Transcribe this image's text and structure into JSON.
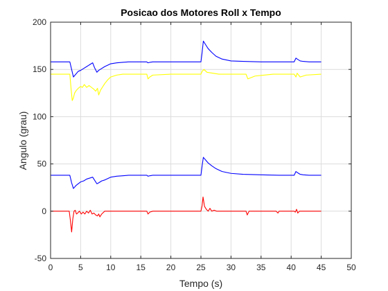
{
  "chart_data": {
    "type": "line",
    "title": "Posicao dos Motores Roll x Tempo",
    "xlabel": "Tempo (s)",
    "ylabel": "Angulo (grau)",
    "xlim": [
      0,
      50
    ],
    "ylim": [
      -50,
      200
    ],
    "xticks": [
      0,
      5,
      10,
      15,
      20,
      25,
      30,
      35,
      40,
      45,
      50
    ],
    "yticks": [
      -50,
      0,
      50,
      100,
      150,
      200
    ],
    "grid": true,
    "legend": "none",
    "colors": {
      "blue": "#0000ff",
      "yellow": "#ffff00",
      "red": "#ff0000",
      "grid": "#dcdcdc",
      "axis": "#262626"
    },
    "series": [
      {
        "color": "#0000ff",
        "x": [
          0,
          3.2,
          3.5,
          3.8,
          4.2,
          4.6,
          5.0,
          5.5,
          6.0,
          6.5,
          7.0,
          7.3,
          7.7,
          8.0,
          8.5,
          9.0,
          10.0,
          11.0,
          12.0,
          13.0,
          15.0,
          16.0,
          16.2,
          16.5,
          17.0,
          20.0,
          24.0,
          25.0,
          25.2,
          25.4,
          25.8,
          26.2,
          26.8,
          27.5,
          28.5,
          30.0,
          32.0,
          35.0,
          38.0,
          40.5,
          40.8,
          41.0,
          41.5,
          42.0,
          43.0,
          45.0
        ],
        "y": [
          158,
          158,
          150,
          142,
          145,
          148,
          149,
          151,
          153,
          155,
          157,
          152,
          147,
          149,
          151,
          153,
          156,
          157,
          157.5,
          158,
          158,
          158,
          157,
          157.5,
          158,
          158,
          158,
          158,
          168,
          180,
          176,
          172,
          168,
          164,
          161,
          159,
          158.5,
          158,
          158,
          158,
          162,
          161,
          159,
          158.5,
          158,
          158
        ]
      },
      {
        "color": "#ffff00",
        "x": [
          0,
          3.2,
          3.4,
          3.6,
          3.8,
          4.0,
          4.3,
          4.6,
          5.0,
          5.3,
          5.6,
          6.0,
          6.4,
          6.8,
          7.2,
          7.5,
          7.8,
          8.0,
          8.3,
          8.6,
          9.0,
          9.5,
          10.0,
          10.5,
          11.0,
          12.0,
          13.0,
          15.0,
          16.0,
          16.2,
          16.5,
          17.0,
          20.0,
          25.0,
          25.2,
          25.5,
          26.0,
          27.0,
          28.0,
          30.0,
          32.5,
          32.8,
          33.2,
          34.0,
          37.0,
          38.0,
          40.5,
          40.8,
          41.0,
          41.5,
          42.5,
          45.0
        ],
        "y": [
          145,
          145,
          130,
          117,
          120,
          125,
          128,
          130,
          132,
          131,
          134,
          131,
          133,
          131,
          129,
          127,
          130,
          123,
          128,
          131,
          135,
          139,
          142,
          143,
          144,
          145,
          145,
          145,
          145,
          140,
          142,
          144,
          145,
          145,
          148,
          150,
          147,
          146,
          145,
          145,
          145,
          140,
          141,
          143,
          145,
          145,
          145,
          142,
          146,
          142,
          144,
          145
        ]
      },
      {
        "color": "#0000ff",
        "x": [
          0,
          3.2,
          3.5,
          3.8,
          4.2,
          4.6,
          5.0,
          5.5,
          6.0,
          6.5,
          7.0,
          7.3,
          7.7,
          8.0,
          8.5,
          9.0,
          10.0,
          11.0,
          12.0,
          13.0,
          15.0,
          16.0,
          16.2,
          16.5,
          17.0,
          20.0,
          24.0,
          25.0,
          25.2,
          25.4,
          25.8,
          26.2,
          26.8,
          27.5,
          28.5,
          30.0,
          32.0,
          35.0,
          38.0,
          40.5,
          40.8,
          41.0,
          41.5,
          42.0,
          43.0,
          45.0
        ],
        "y": [
          38,
          38,
          30,
          24,
          27,
          29,
          31,
          32,
          34,
          35,
          36,
          33,
          29,
          30,
          32,
          33,
          36,
          37,
          37.5,
          38,
          38,
          38,
          37,
          37.5,
          38,
          38,
          38,
          38,
          48,
          57,
          54,
          51,
          48,
          45,
          42,
          40,
          39,
          38.5,
          38,
          38,
          42,
          41,
          39,
          38.5,
          38,
          38
        ]
      },
      {
        "color": "#ff0000",
        "x": [
          0,
          3.1,
          3.3,
          3.5,
          3.7,
          3.9,
          4.1,
          4.3,
          4.5,
          4.8,
          5.1,
          5.4,
          5.7,
          6.0,
          6.3,
          6.6,
          6.9,
          7.2,
          7.5,
          7.8,
          8.0,
          8.2,
          8.5,
          9.0,
          10.0,
          15.0,
          16.0,
          16.2,
          16.5,
          17.0,
          20.0,
          25.0,
          25.2,
          25.35,
          25.6,
          25.9,
          26.2,
          26.5,
          26.8,
          27.2,
          27.6,
          28.0,
          30.0,
          32.5,
          32.7,
          33.0,
          35.0,
          37.5,
          37.8,
          38.0,
          40.5,
          40.7,
          40.9,
          41.1,
          41.4,
          42.0,
          45.0
        ],
        "y": [
          0,
          0,
          -10,
          -22,
          -8,
          0,
          1,
          -3,
          -2,
          0,
          -3,
          -1,
          -3,
          0,
          -2,
          1,
          -3,
          -2,
          -4,
          -5,
          -3,
          -6,
          -3,
          0,
          0,
          0,
          0,
          -3,
          -1,
          0,
          0,
          0,
          6,
          15,
          5,
          2,
          0,
          3,
          0,
          1,
          0,
          0,
          0,
          0,
          -4,
          0,
          0,
          0,
          -2,
          0,
          0,
          -1,
          2,
          -2,
          0,
          0,
          0
        ]
      }
    ]
  }
}
